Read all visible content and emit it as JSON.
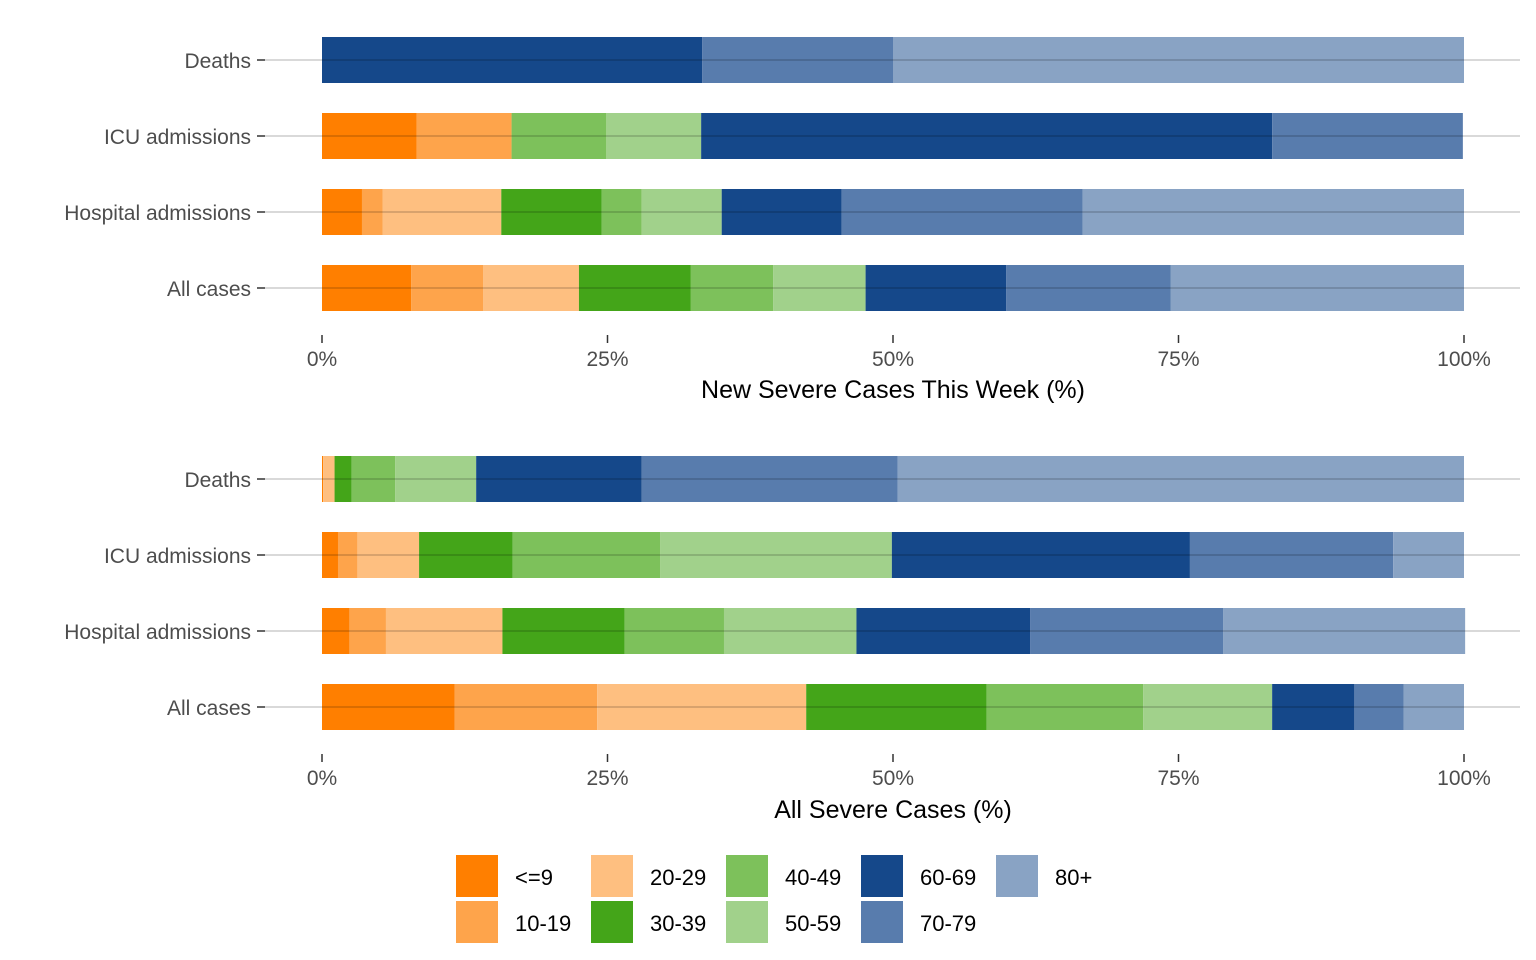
{
  "chart_data": [
    {
      "type": "bar",
      "orientation": "horizontal",
      "stacked": true,
      "xlabel": "New Severe Cases This Week (%)",
      "xlim": [
        0,
        100
      ],
      "xticks": [
        "0%",
        "25%",
        "50%",
        "75%",
        "100%"
      ],
      "categories": [
        "Deaths",
        "ICU admissions",
        "Hospital admissions",
        "All cases"
      ],
      "series": [
        {
          "name": "<=9",
          "values": [
            0,
            8.3,
            3.5,
            7.8
          ]
        },
        {
          "name": "10-19",
          "values": [
            0,
            8.3,
            1.8,
            6.3
          ]
        },
        {
          "name": "20-29",
          "values": [
            0,
            0,
            10.4,
            8.4
          ]
        },
        {
          "name": "30-39",
          "values": [
            0,
            0,
            8.8,
            9.8
          ]
        },
        {
          "name": "40-49",
          "values": [
            0,
            8.3,
            3.5,
            7.2
          ]
        },
        {
          "name": "50-59",
          "values": [
            0,
            8.3,
            7.0,
            8.1
          ]
        },
        {
          "name": "60-69",
          "values": [
            33.3,
            50.0,
            10.5,
            12.3
          ]
        },
        {
          "name": "70-79",
          "values": [
            16.7,
            16.7,
            21.1,
            14.4
          ]
        },
        {
          "name": "80+",
          "values": [
            50.0,
            0,
            33.4,
            25.7
          ]
        }
      ]
    },
    {
      "type": "bar",
      "orientation": "horizontal",
      "stacked": true,
      "xlabel": "All Severe Cases (%)",
      "xlim": [
        0,
        100
      ],
      "xticks": [
        "0%",
        "25%",
        "50%",
        "75%",
        "100%"
      ],
      "categories": [
        "Deaths",
        "ICU admissions",
        "Hospital admissions",
        "All cases"
      ],
      "series": [
        {
          "name": "<=9",
          "values": [
            0.1,
            1.4,
            2.4,
            11.6
          ]
        },
        {
          "name": "10-19",
          "values": [
            0,
            1.7,
            3.2,
            12.5
          ]
        },
        {
          "name": "20-29",
          "values": [
            1.0,
            5.4,
            10.2,
            18.3
          ]
        },
        {
          "name": "30-39",
          "values": [
            1.5,
            8.2,
            10.7,
            15.8
          ]
        },
        {
          "name": "40-49",
          "values": [
            3.8,
            12.9,
            8.7,
            13.7
          ]
        },
        {
          "name": "50-59",
          "values": [
            7.1,
            20.3,
            11.6,
            11.3
          ]
        },
        {
          "name": "60-69",
          "values": [
            14.5,
            26.1,
            15.2,
            7.2
          ]
        },
        {
          "name": "70-79",
          "values": [
            22.4,
            17.8,
            16.9,
            4.3
          ]
        },
        {
          "name": "80+",
          "values": [
            49.6,
            6.2,
            21.2,
            5.3
          ]
        }
      ]
    }
  ],
  "legend": {
    "placement": "bottom",
    "items": [
      "<=9",
      "10-19",
      "20-29",
      "30-39",
      "40-49",
      "50-59",
      "60-69",
      "70-79",
      "80+"
    ],
    "colors": [
      "#ff7f00",
      "#fea44b",
      "#febf80",
      "#44a519",
      "#7dc15b",
      "#a1d18b",
      "#15488a",
      "#587cad",
      "#89a3c4"
    ]
  }
}
